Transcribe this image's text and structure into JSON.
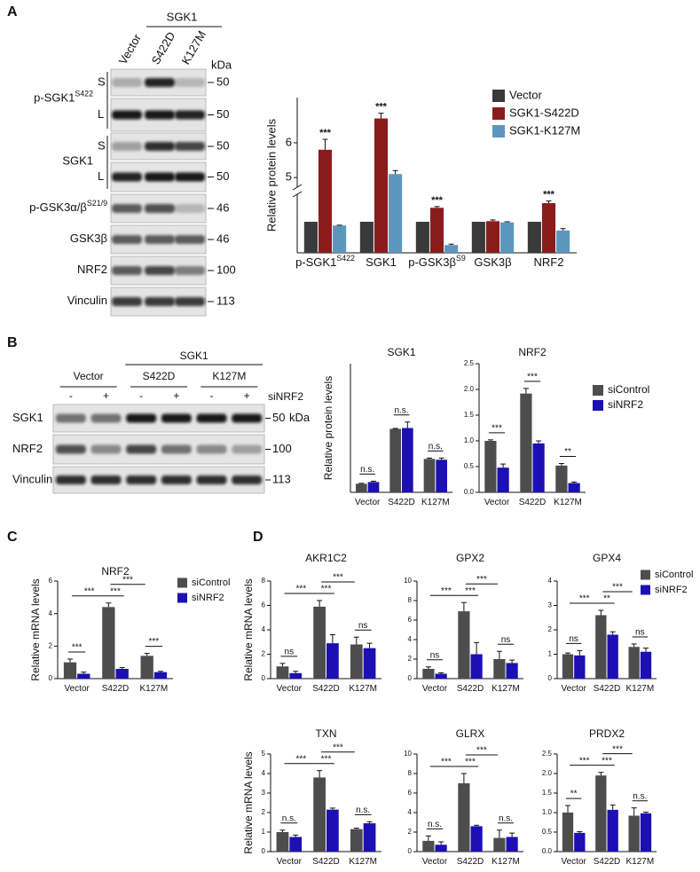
{
  "panel_labels": [
    "A",
    "B",
    "C",
    "D"
  ],
  "blot_a": {
    "group_label": "SGK1",
    "lanes": [
      "Vector",
      "S422D",
      "K127M"
    ],
    "unit": "kDa",
    "rows": [
      {
        "label": "p-SGK1",
        "sup": "S422",
        "strips": [
          {
            "sub": "S",
            "kda": 50
          },
          {
            "sub": "L",
            "kda": 50
          }
        ]
      },
      {
        "label": "SGK1",
        "strips": [
          {
            "sub": "S",
            "kda": 50
          },
          {
            "sub": "L",
            "kda": 50
          }
        ]
      },
      {
        "label": "p-GSK3α/β",
        "sup": "S21/9",
        "strips": [
          {
            "kda": 46
          }
        ]
      },
      {
        "label": "GSK3β",
        "strips": [
          {
            "kda": 46
          }
        ]
      },
      {
        "label": "NRF2",
        "strips": [
          {
            "kda": 100
          }
        ]
      },
      {
        "label": "Vinculin",
        "strips": [
          {
            "kda": 113
          }
        ]
      }
    ]
  },
  "blot_b": {
    "group_label": "SGK1",
    "groups": [
      "Vector",
      "S422D",
      "K127M"
    ],
    "treatment": "siNRF2",
    "lane_signs": [
      "-",
      "+",
      "-",
      "+",
      "-",
      "+"
    ],
    "unit": "kDa",
    "rows": [
      {
        "label": "SGK1",
        "kda": 50
      },
      {
        "label": "NRF2",
        "kda": 100
      },
      {
        "label": "Vinculin",
        "kda": 113
      }
    ]
  },
  "chart_data": [
    {
      "type": "bar",
      "categories": [
        "p-SGK1",
        "SGK1",
        "p-GSK3β",
        "GSK3β",
        "NRF2"
      ],
      "category_superscripts": {
        "0": "S422",
        "2": "S9"
      },
      "ylabel": "Relative protein levels",
      "series": [
        {
          "name": "Vector",
          "color": "#3a3a3a",
          "values": [
            1,
            1,
            1,
            1,
            1
          ]
        },
        {
          "name": "SGK1-S422D",
          "color": "#8b1c1c",
          "values": [
            5.8,
            6.7,
            1.45,
            1.02,
            1.6
          ],
          "errors": [
            0.3,
            0.15,
            0.04,
            0.04,
            0.07
          ]
        },
        {
          "name": "SGK1-K127M",
          "color": "#5b97bd",
          "values": [
            0.88,
            5.1,
            0.25,
            0.98,
            0.72
          ],
          "errors": [
            0.01,
            0.1,
            0.03,
            0.02,
            0.06
          ]
        }
      ],
      "ylim": [
        0,
        7.3
      ],
      "y_break": [
        1.8,
        4.8
      ],
      "yticks": [
        5,
        6
      ],
      "annotations": [
        {
          "category": 0,
          "series": 1,
          "label": "***"
        },
        {
          "category": 1,
          "series": 1,
          "label": "***"
        },
        {
          "category": 2,
          "series": 1,
          "label": "***"
        },
        {
          "category": 4,
          "series": 1,
          "label": "***"
        }
      ],
      "legend": true
    },
    {
      "type": "bar",
      "title": "SGK1",
      "ylabel": "Relative protein levels",
      "categories": [
        "Vector",
        "S422D",
        "K127M"
      ],
      "series": [
        {
          "name": "siControl",
          "color": "#4d4d4d",
          "values": [
            1.0,
            7.4,
            3.9
          ],
          "errors": [
            0.05,
            0.05,
            0.1
          ]
        },
        {
          "name": "siNRF2",
          "color": "#1c0fb3",
          "values": [
            1.2,
            7.5,
            3.8
          ],
          "errors": [
            0.1,
            0.7,
            0.2
          ]
        }
      ],
      "ylim": [
        0,
        15
      ],
      "brackets": [
        {
          "from": [
            0,
            0
          ],
          "to": [
            0,
            1
          ],
          "label": "n.s."
        },
        {
          "from": [
            1,
            0
          ],
          "to": [
            1,
            1
          ],
          "label": "n.s."
        },
        {
          "from": [
            2,
            0
          ],
          "to": [
            2,
            1
          ],
          "label": "n.s."
        }
      ]
    },
    {
      "type": "bar",
      "title": "NRF2",
      "categories": [
        "Vector",
        "S422D",
        "K127M"
      ],
      "series": [
        {
          "name": "siControl",
          "color": "#4d4d4d",
          "values": [
            1.0,
            1.92,
            0.52
          ],
          "errors": [
            0.02,
            0.1,
            0.04
          ]
        },
        {
          "name": "siNRF2",
          "color": "#1c0fb3",
          "values": [
            0.48,
            0.95,
            0.18
          ],
          "errors": [
            0.07,
            0.05,
            0.02
          ]
        }
      ],
      "ylim": [
        0,
        2.5
      ],
      "yticks": [
        {
          "value": 0,
          "label": "0.0"
        },
        {
          "value": 0.5,
          "label": "0.5"
        },
        {
          "value": 1,
          "label": "1.0"
        },
        {
          "value": 1.5,
          "label": "1.5"
        },
        {
          "value": 2,
          "label": "2.0"
        },
        {
          "value": 2.5,
          "label": "2.5"
        }
      ],
      "brackets": [
        {
          "from": [
            0,
            0
          ],
          "to": [
            0,
            1
          ],
          "label": "***"
        },
        {
          "from": [
            1,
            0
          ],
          "to": [
            1,
            1
          ],
          "label": "***"
        },
        {
          "from": [
            2,
            0
          ],
          "to": [
            2,
            1
          ],
          "label": "**"
        }
      ],
      "legend": true
    },
    {
      "type": "bar",
      "title": "NRF2",
      "ylabel": "Relative mRNA levels",
      "categories": [
        "Vector",
        "S422D",
        "K127M"
      ],
      "series": [
        {
          "name": "siControl",
          "color": "#4d4d4d",
          "values": [
            1.0,
            4.4,
            1.4
          ],
          "errors": [
            0.2,
            0.25,
            0.15
          ]
        },
        {
          "name": "siNRF2",
          "color": "#1c0fb3",
          "values": [
            0.3,
            0.6,
            0.4
          ],
          "errors": [
            0.1,
            0.08,
            0.05
          ]
        }
      ],
      "ylim": [
        0,
        6
      ],
      "yticks": [
        0,
        2,
        4,
        6
      ],
      "brackets": [
        {
          "from": [
            0,
            0
          ],
          "to": [
            0,
            1
          ],
          "label": "***"
        },
        {
          "from": [
            1,
            0
          ],
          "to": [
            1,
            1
          ],
          "label": "***"
        },
        {
          "from": [
            2,
            0
          ],
          "to": [
            2,
            1
          ],
          "label": "***"
        },
        {
          "from": [
            0,
            0
          ],
          "to": [
            1,
            0
          ],
          "label": "***"
        },
        {
          "from": [
            1,
            0
          ],
          "to": [
            2,
            0
          ],
          "label": "***"
        }
      ],
      "legend": true
    },
    {
      "type": "bar",
      "title": "AKR1C2",
      "ylabel": "Relative mRNA levels",
      "categories": [
        "Vector",
        "S422D",
        "K127M"
      ],
      "series": [
        {
          "name": "siControl",
          "color": "#4d4d4d",
          "values": [
            1.0,
            5.9,
            2.8
          ],
          "errors": [
            0.25,
            0.5,
            0.6
          ]
        },
        {
          "name": "siNRF2",
          "color": "#1c0fb3",
          "values": [
            0.45,
            2.9,
            2.5
          ],
          "errors": [
            0.15,
            0.7,
            0.4
          ]
        }
      ],
      "ylim": [
        0,
        8
      ],
      "yticks": [
        0,
        2,
        4,
        6,
        8
      ],
      "brackets": [
        {
          "from": [
            0,
            0
          ],
          "to": [
            0,
            1
          ],
          "label": "ns"
        },
        {
          "from": [
            1,
            0
          ],
          "to": [
            1,
            1
          ],
          "label": "***"
        },
        {
          "from": [
            2,
            0
          ],
          "to": [
            2,
            1
          ],
          "label": "ns"
        },
        {
          "from": [
            0,
            0
          ],
          "to": [
            1,
            0
          ],
          "label": "***"
        },
        {
          "from": [
            1,
            0
          ],
          "to": [
            2,
            0
          ],
          "label": "***"
        }
      ]
    },
    {
      "type": "bar",
      "title": "GPX2",
      "categories": [
        "Vector",
        "S422D",
        "K127M"
      ],
      "series": [
        {
          "name": "siControl",
          "color": "#4d4d4d",
          "values": [
            1.0,
            6.9,
            2.0
          ],
          "errors": [
            0.2,
            0.9,
            0.8
          ]
        },
        {
          "name": "siNRF2",
          "color": "#1c0fb3",
          "values": [
            0.5,
            2.5,
            1.6
          ],
          "errors": [
            0.1,
            1.2,
            0.3
          ]
        }
      ],
      "ylim": [
        0,
        10
      ],
      "yticks": [
        0,
        2,
        4,
        6,
        8,
        10
      ],
      "brackets": [
        {
          "from": [
            0,
            0
          ],
          "to": [
            0,
            1
          ],
          "label": "ns"
        },
        {
          "from": [
            1,
            0
          ],
          "to": [
            1,
            1
          ],
          "label": "***"
        },
        {
          "from": [
            2,
            0
          ],
          "to": [
            2,
            1
          ],
          "label": "ns"
        },
        {
          "from": [
            0,
            0
          ],
          "to": [
            1,
            0
          ],
          "label": "***"
        },
        {
          "from": [
            1,
            0
          ],
          "to": [
            2,
            0
          ],
          "label": "***"
        }
      ]
    },
    {
      "type": "bar",
      "title": "GPX4",
      "categories": [
        "Vector",
        "S422D",
        "K127M"
      ],
      "series": [
        {
          "name": "siControl",
          "color": "#4d4d4d",
          "values": [
            1.0,
            2.6,
            1.3
          ],
          "errors": [
            0.05,
            0.2,
            0.12
          ]
        },
        {
          "name": "siNRF2",
          "color": "#1c0fb3",
          "values": [
            0.95,
            1.8,
            1.1
          ],
          "errors": [
            0.2,
            0.12,
            0.15
          ]
        }
      ],
      "ylim": [
        0,
        4
      ],
      "yticks": [
        0,
        1,
        2,
        3,
        4
      ],
      "brackets": [
        {
          "from": [
            0,
            0
          ],
          "to": [
            0,
            1
          ],
          "label": "ns"
        },
        {
          "from": [
            1,
            0
          ],
          "to": [
            1,
            1
          ],
          "label": "**"
        },
        {
          "from": [
            2,
            0
          ],
          "to": [
            2,
            1
          ],
          "label": "ns"
        },
        {
          "from": [
            0,
            0
          ],
          "to": [
            1,
            0
          ],
          "label": "***"
        },
        {
          "from": [
            1,
            0
          ],
          "to": [
            2,
            0
          ],
          "label": "***"
        }
      ],
      "legend": true
    },
    {
      "type": "bar",
      "title": "TXN",
      "ylabel": "Relative mRNA levels",
      "categories": [
        "Vector",
        "S422D",
        "K127M"
      ],
      "series": [
        {
          "name": "siControl",
          "color": "#4d4d4d",
          "values": [
            1.0,
            3.8,
            1.15
          ],
          "errors": [
            0.1,
            0.35,
            0.05
          ]
        },
        {
          "name": "siNRF2",
          "color": "#1c0fb3",
          "values": [
            0.75,
            2.15,
            1.45
          ],
          "errors": [
            0.1,
            0.08,
            0.08
          ]
        }
      ],
      "ylim": [
        0,
        5
      ],
      "yticks": [
        0,
        1,
        2,
        3,
        4,
        5
      ],
      "brackets": [
        {
          "from": [
            0,
            0
          ],
          "to": [
            0,
            1
          ],
          "label": "n.s."
        },
        {
          "from": [
            1,
            0
          ],
          "to": [
            1,
            1
          ],
          "label": "***"
        },
        {
          "from": [
            2,
            0
          ],
          "to": [
            2,
            1
          ],
          "label": "n.s."
        },
        {
          "from": [
            0,
            0
          ],
          "to": [
            1,
            0
          ],
          "label": "***"
        },
        {
          "from": [
            1,
            0
          ],
          "to": [
            2,
            0
          ],
          "label": "***"
        }
      ]
    },
    {
      "type": "bar",
      "title": "GLRX",
      "categories": [
        "Vector",
        "S422D",
        "K127M"
      ],
      "series": [
        {
          "name": "siControl",
          "color": "#4d4d4d",
          "values": [
            1.1,
            7.0,
            1.4
          ],
          "errors": [
            0.5,
            1.0,
            0.8
          ]
        },
        {
          "name": "siNRF2",
          "color": "#1c0fb3",
          "values": [
            0.7,
            2.6,
            1.5
          ],
          "errors": [
            0.3,
            0.1,
            0.4
          ]
        }
      ],
      "ylim": [
        0,
        10
      ],
      "yticks": [
        0,
        2,
        4,
        6,
        8,
        10
      ],
      "brackets": [
        {
          "from": [
            0,
            0
          ],
          "to": [
            0,
            1
          ],
          "label": "n.s."
        },
        {
          "from": [
            1,
            0
          ],
          "to": [
            1,
            1
          ],
          "label": "***"
        },
        {
          "from": [
            2,
            0
          ],
          "to": [
            2,
            1
          ],
          "label": "n.s."
        },
        {
          "from": [
            0,
            0
          ],
          "to": [
            1,
            0
          ],
          "label": "***"
        },
        {
          "from": [
            1,
            0
          ],
          "to": [
            2,
            0
          ],
          "label": "***"
        }
      ]
    },
    {
      "type": "bar",
      "title": "PRDX2",
      "categories": [
        "Vector",
        "S422D",
        "K127M"
      ],
      "series": [
        {
          "name": "siControl",
          "color": "#4d4d4d",
          "values": [
            1.0,
            1.95,
            0.92
          ],
          "errors": [
            0.18,
            0.08,
            0.2
          ]
        },
        {
          "name": "siNRF2",
          "color": "#1c0fb3",
          "values": [
            0.48,
            1.07,
            0.98
          ],
          "errors": [
            0.03,
            0.12,
            0.03
          ]
        }
      ],
      "ylim": [
        0,
        2.5
      ],
      "yticks": [
        {
          "value": 0,
          "label": "0.0"
        },
        {
          "value": 0.5,
          "label": "0.5"
        },
        {
          "value": 1,
          "label": "1.0"
        },
        {
          "value": 1.5,
          "label": "1.5"
        },
        {
          "value": 2,
          "label": "2.0"
        },
        {
          "value": 2.5,
          "label": "2.5"
        }
      ],
      "brackets": [
        {
          "from": [
            0,
            0
          ],
          "to": [
            0,
            1
          ],
          "label": "**"
        },
        {
          "from": [
            1,
            0
          ],
          "to": [
            1,
            1
          ],
          "label": "***"
        },
        {
          "from": [
            2,
            0
          ],
          "to": [
            2,
            1
          ],
          "label": "n.s."
        },
        {
          "from": [
            0,
            0
          ],
          "to": [
            1,
            0
          ],
          "label": "***"
        },
        {
          "from": [
            1,
            0
          ],
          "to": [
            2,
            0
          ],
          "label": "***"
        }
      ]
    }
  ]
}
